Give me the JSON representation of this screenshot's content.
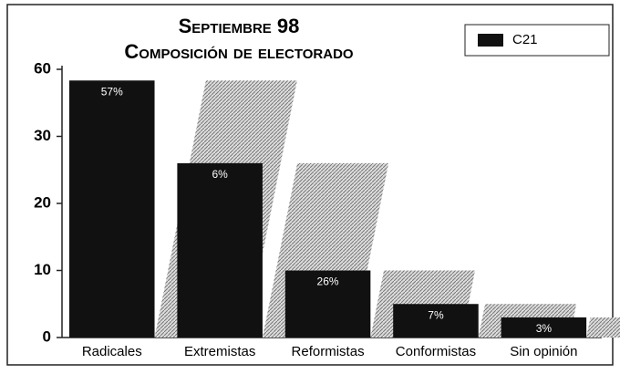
{
  "chart_data": {
    "type": "bar",
    "title": [
      "Septiembre 98",
      "Composición de electorado"
    ],
    "categories": [
      "Radicales",
      "Extremistas",
      "Reformistas",
      "Conformistas",
      "Sin opinión"
    ],
    "series": [
      {
        "name": "C21",
        "color": "#111111",
        "values": [
          55,
          26,
          10,
          5,
          3
        ]
      }
    ],
    "annotations": [
      "57%",
      "6%",
      "26%",
      "7%",
      "3%"
    ],
    "ylim": [
      0,
      60
    ],
    "yticks": [
      0,
      10,
      20,
      30,
      60
    ],
    "legend": "upper right"
  }
}
